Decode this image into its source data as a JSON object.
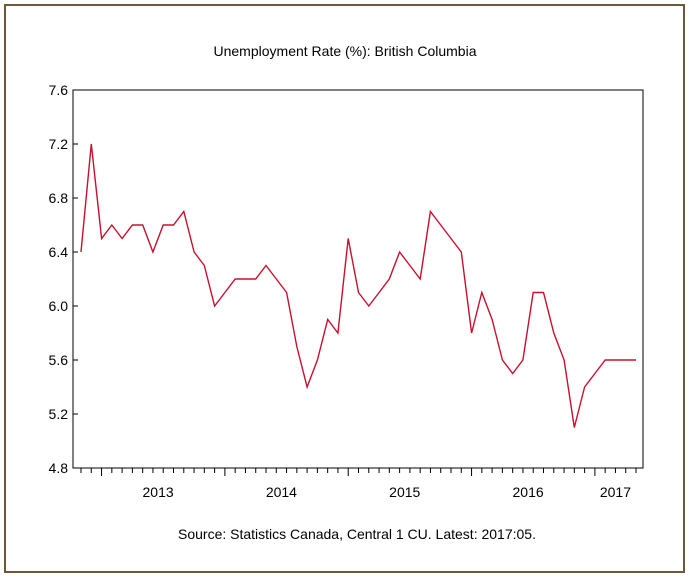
{
  "chart_data": {
    "type": "line",
    "title": "Unemployment Rate (%): British Columbia",
    "source_note": "Source: Statistics Canada, Central 1 CU. Latest: 2017:05.",
    "xlabel": "",
    "ylabel": "",
    "ylim": [
      4.8,
      7.6
    ],
    "yticks": [
      "4.8",
      "5.2",
      "5.6",
      "6.0",
      "6.4",
      "6.8",
      "7.2",
      "7.6"
    ],
    "xticks": [
      "2013",
      "2014",
      "2015",
      "2016",
      "2017"
    ],
    "x_start": "2012-11",
    "x_end": "2017-05",
    "grid": false,
    "series": [
      {
        "color": "#c8102e",
        "x": [
          "2012-11",
          "2012-12",
          "2013-01",
          "2013-02",
          "2013-03",
          "2013-04",
          "2013-05",
          "2013-06",
          "2013-07",
          "2013-08",
          "2013-09",
          "2013-10",
          "2013-11",
          "2013-12",
          "2014-01",
          "2014-02",
          "2014-03",
          "2014-04",
          "2014-05",
          "2014-06",
          "2014-07",
          "2014-08",
          "2014-09",
          "2014-10",
          "2014-11",
          "2014-12",
          "2015-01",
          "2015-02",
          "2015-03",
          "2015-04",
          "2015-05",
          "2015-06",
          "2015-07",
          "2015-08",
          "2015-09",
          "2015-10",
          "2015-11",
          "2015-12",
          "2016-01",
          "2016-02",
          "2016-03",
          "2016-04",
          "2016-05",
          "2016-06",
          "2016-07",
          "2016-08",
          "2016-09",
          "2016-10",
          "2016-11",
          "2016-12",
          "2017-01",
          "2017-02",
          "2017-03",
          "2017-04",
          "2017-05"
        ],
        "values": [
          6.4,
          7.2,
          6.5,
          6.6,
          6.5,
          6.6,
          6.6,
          6.4,
          6.6,
          6.6,
          6.7,
          6.4,
          6.3,
          6.0,
          6.1,
          6.2,
          6.2,
          6.2,
          6.3,
          6.2,
          6.1,
          5.7,
          5.4,
          5.6,
          5.9,
          5.8,
          6.5,
          6.1,
          6.0,
          6.1,
          6.2,
          6.4,
          6.3,
          6.2,
          6.7,
          6.6,
          6.5,
          6.4,
          5.8,
          6.1,
          5.9,
          5.6,
          5.5,
          5.6,
          6.1,
          6.1,
          5.8,
          5.6,
          5.1,
          5.4,
          5.5,
          5.6,
          5.6,
          5.6,
          5.6
        ]
      }
    ]
  }
}
